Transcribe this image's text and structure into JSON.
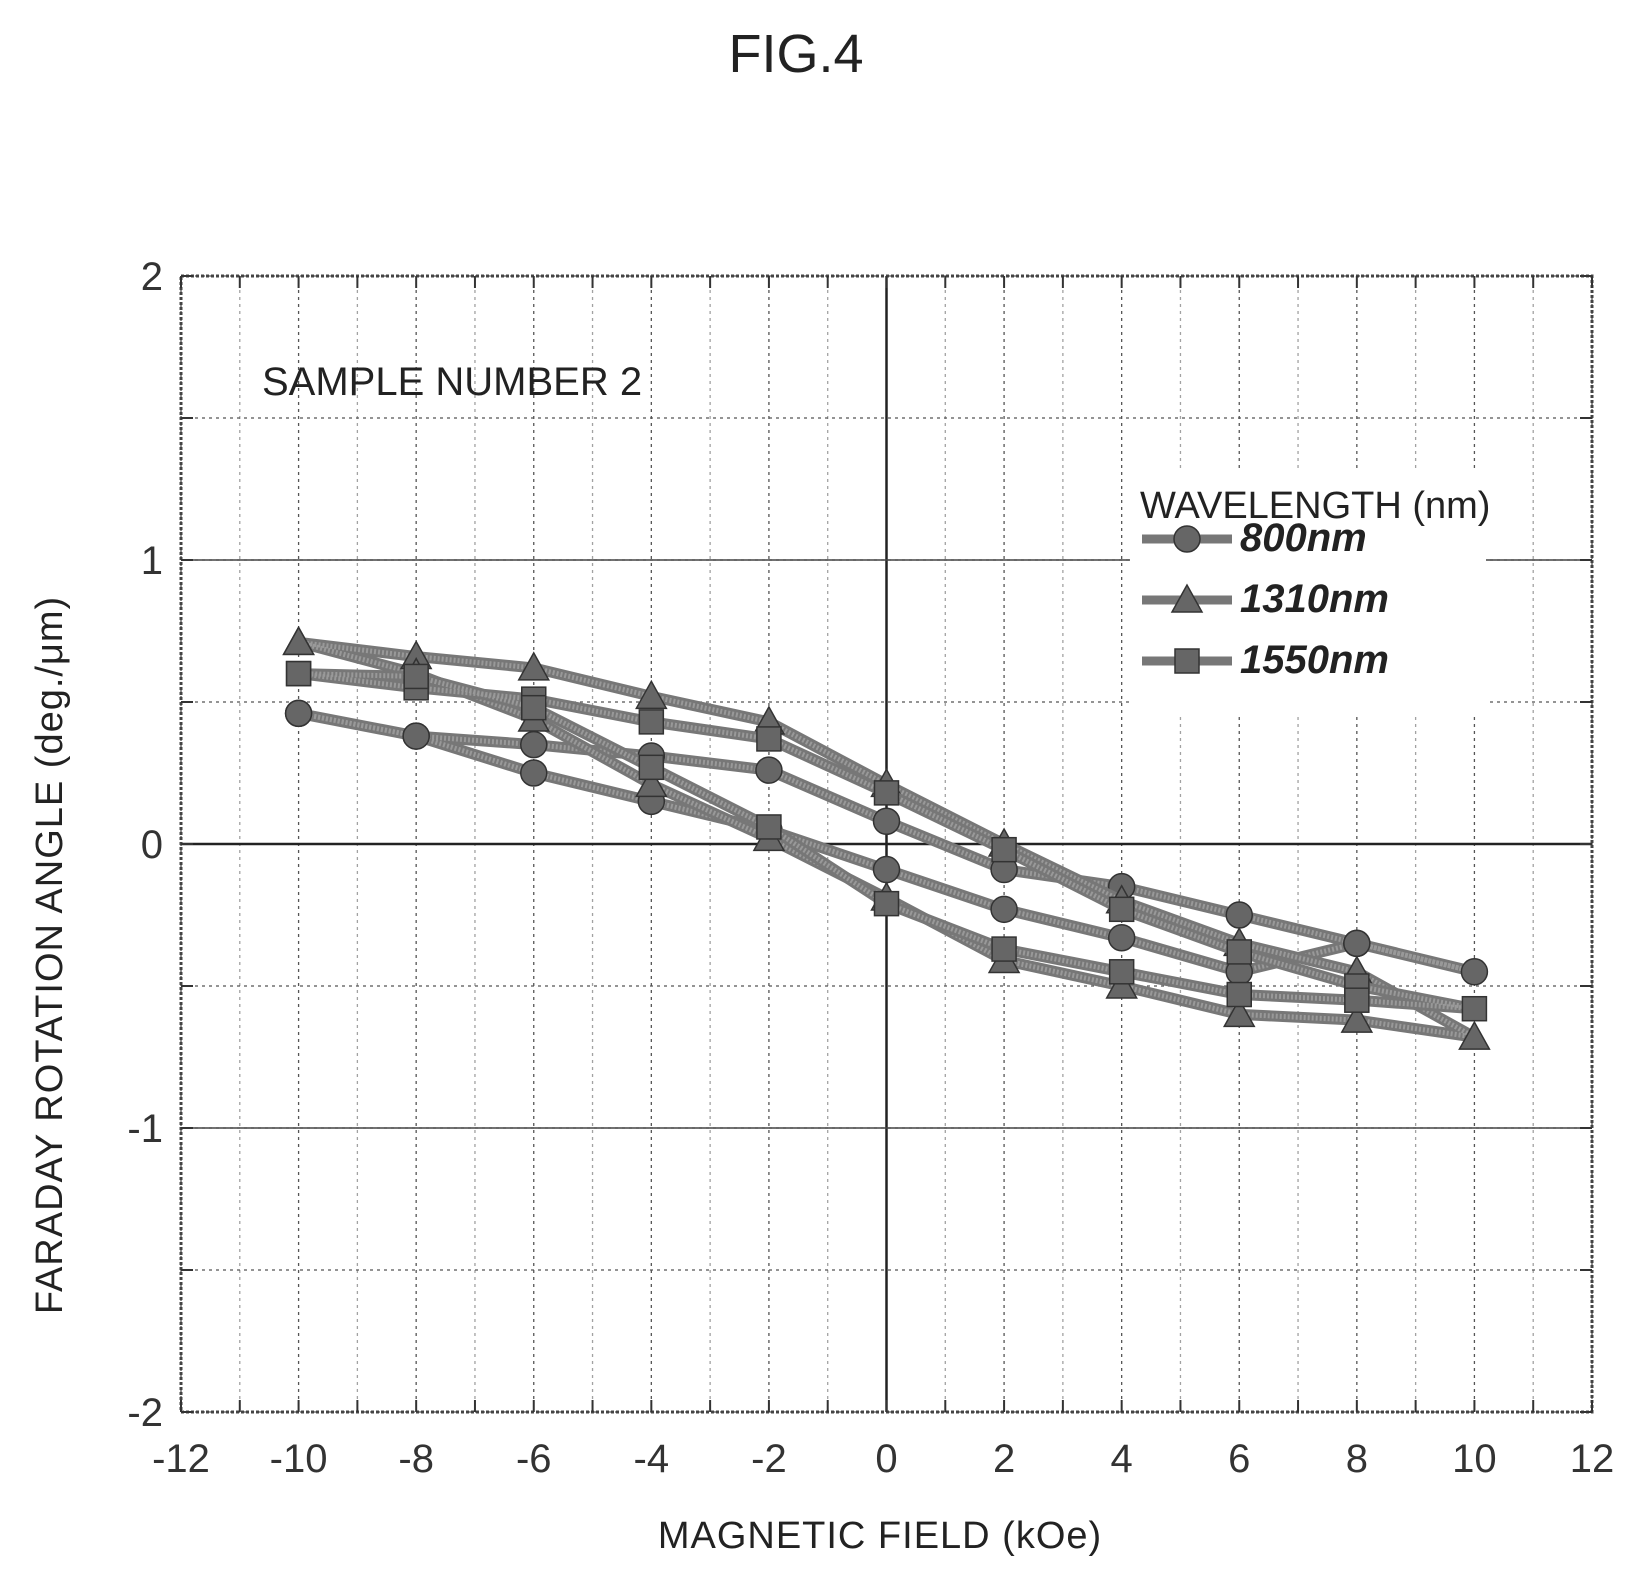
{
  "chart_data": {
    "type": "line",
    "title": "FIG.4",
    "xlabel": "MAGNETIC FIELD (kOe)",
    "ylabel": "FARADAY ROTATION ANGLE (deg./μm)",
    "xlim": [
      -12,
      12
    ],
    "ylim": [
      -2,
      2
    ],
    "x_ticks": [
      -12,
      -10,
      -8,
      -6,
      -4,
      -2,
      0,
      2,
      4,
      6,
      8,
      10,
      12
    ],
    "y_ticks": [
      -2,
      -1,
      0,
      1,
      2
    ],
    "grid": true,
    "annotation": "SAMPLE NUMBER 2",
    "legend_title": "WAVELENGTH (nm)",
    "legend_position": "top-right",
    "series": [
      {
        "name": "800nm",
        "marker": "circle",
        "x": [
          -10,
          -8,
          -6,
          -4,
          -2,
          0,
          2,
          4,
          6,
          8,
          10,
          8,
          6,
          4,
          2,
          0,
          -2,
          -4,
          -6,
          -8,
          -10
        ],
        "y": [
          0.46,
          0.38,
          0.25,
          0.15,
          0.05,
          -0.09,
          -0.23,
          -0.33,
          -0.45,
          -0.35,
          -0.45,
          -0.35,
          -0.25,
          -0.15,
          -0.09,
          0.08,
          0.26,
          0.31,
          0.35,
          0.38,
          0.46
        ]
      },
      {
        "name": "1310nm",
        "marker": "triangle",
        "x": [
          -10,
          -8,
          -6,
          -4,
          -2,
          0,
          2,
          4,
          6,
          8,
          10,
          8,
          6,
          4,
          2,
          0,
          -2,
          -4,
          -6,
          -8,
          -10
        ],
        "y": [
          0.71,
          0.66,
          0.62,
          0.52,
          0.43,
          0.21,
          0.0,
          -0.2,
          -0.35,
          -0.45,
          -0.68,
          -0.62,
          -0.6,
          -0.5,
          -0.41,
          -0.19,
          0.02,
          0.21,
          0.44,
          0.6,
          0.71
        ]
      },
      {
        "name": "1550nm",
        "marker": "square",
        "x": [
          -10,
          -8,
          -6,
          -4,
          -2,
          0,
          2,
          4,
          6,
          8,
          10,
          8,
          6,
          4,
          2,
          0,
          -2,
          -4,
          -6,
          -8,
          -10
        ],
        "y": [
          0.6,
          0.55,
          0.51,
          0.43,
          0.37,
          0.18,
          -0.02,
          -0.23,
          -0.38,
          -0.5,
          -0.58,
          -0.55,
          -0.53,
          -0.45,
          -0.37,
          -0.21,
          0.06,
          0.27,
          0.48,
          0.59,
          0.6
        ]
      }
    ]
  }
}
